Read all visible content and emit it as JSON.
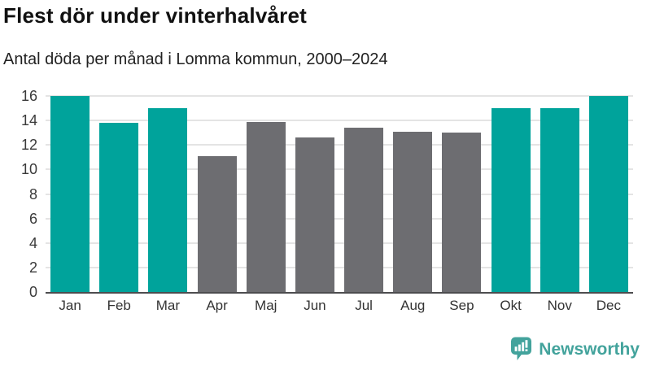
{
  "header": {
    "title": "Flest dör under vinterhalvåret",
    "subtitle": "Antal döda per månad i Lomma kommun, 2000–2024"
  },
  "chart_data": {
    "type": "bar",
    "title": "Flest dör under vinterhalvåret",
    "subtitle": "Antal döda per månad i Lomma kommun, 2000–2024",
    "categories": [
      "Jan",
      "Feb",
      "Mar",
      "Apr",
      "Maj",
      "Jun",
      "Jul",
      "Aug",
      "Sep",
      "Okt",
      "Nov",
      "Dec"
    ],
    "values": [
      16,
      13.8,
      15,
      11.1,
      13.9,
      12.6,
      13.4,
      13.1,
      13,
      15,
      15,
      16
    ],
    "bar_groups": [
      "winter",
      "winter",
      "winter",
      "summer",
      "summer",
      "summer",
      "summer",
      "summer",
      "summer",
      "winter",
      "winter",
      "winter"
    ],
    "group_colors": {
      "winter": "#00a39b",
      "summer": "#6d6d71"
    },
    "xlabel": "",
    "ylabel": "",
    "ylim": [
      0,
      16
    ],
    "yticks": [
      0,
      2,
      4,
      6,
      8,
      10,
      12,
      14,
      16
    ],
    "grid": true,
    "legend": "none"
  },
  "footer": {
    "brand": "Newsworthy",
    "brand_color": "#43a39c",
    "logo_icon": "bar-chart-speech-bubble-icon"
  }
}
